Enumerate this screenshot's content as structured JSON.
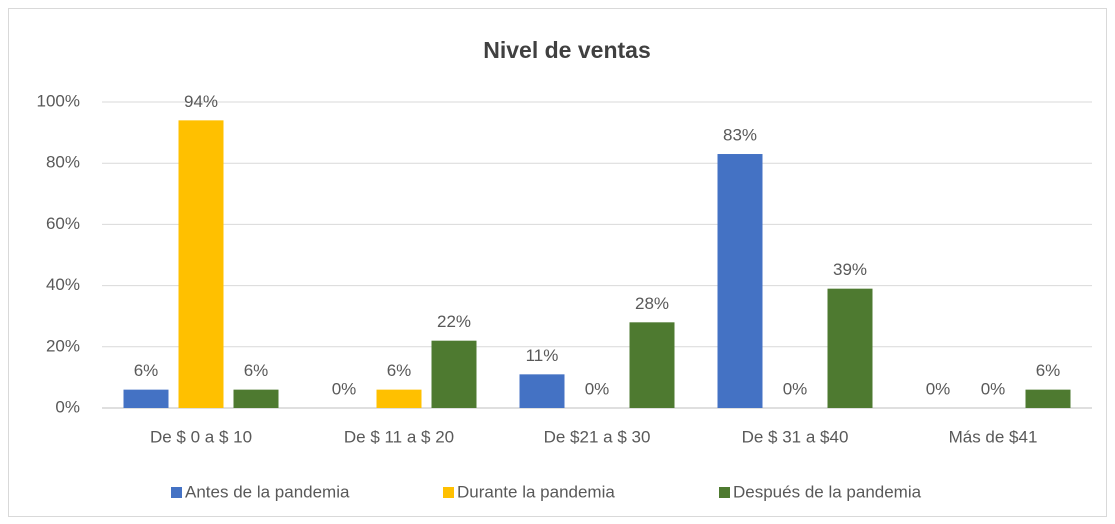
{
  "chart_data": {
    "type": "bar",
    "title": "Nivel de ventas",
    "categories": [
      "De $ 0 a $ 10",
      "De $ 11 a $ 20",
      "De $21 a $ 30",
      "De $ 31 a $40",
      "Más de $41"
    ],
    "series": [
      {
        "name": "Antes de la pandemia",
        "color": "#4472c4",
        "values": [
          6,
          0,
          11,
          83,
          0
        ],
        "value_labels": [
          "6%",
          "0%",
          "11%",
          "83%",
          "0%"
        ]
      },
      {
        "name": "Durante la pandemia",
        "color": "#ffc000",
        "values": [
          94,
          6,
          0,
          0,
          0
        ],
        "value_labels": [
          "94%",
          "6%",
          "0%",
          "0%",
          "0%"
        ]
      },
      {
        "name": "Después de la pandemia",
        "color": "#4e7a30",
        "values": [
          6,
          22,
          28,
          39,
          6
        ],
        "value_labels": [
          "6%",
          "22%",
          "28%",
          "39%",
          "6%"
        ]
      }
    ],
    "ylim": [
      0,
      100
    ],
    "yticks": [
      {
        "value": 0,
        "label": "0%"
      },
      {
        "value": 20,
        "label": "20%"
      },
      {
        "value": 40,
        "label": "40%"
      },
      {
        "value": 60,
        "label": "60%"
      },
      {
        "value": 80,
        "label": "80%"
      },
      {
        "value": 100,
        "label": "100%"
      }
    ],
    "grid": true,
    "legend": "bottom"
  }
}
